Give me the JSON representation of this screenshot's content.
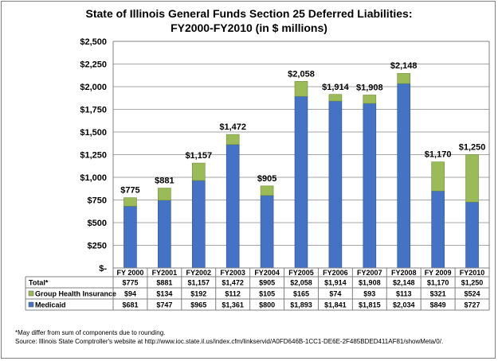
{
  "chart_data": {
    "type": "bar",
    "stacked": true,
    "title_lines": [
      "State of Illinois General Funds Section 25 Deferred Liabilities:",
      "FY2000-FY2010 (in $ millions)"
    ],
    "categories": [
      "FY 2000",
      "FY2001",
      "FY2002",
      "FY2003",
      "FY2004",
      "FY2005",
      "FY2006",
      "FY2007",
      "FY2008",
      "FY 2009",
      "FY2010"
    ],
    "series": [
      {
        "name": "Medicaid",
        "color": "#4472C4",
        "values": [
          681,
          747,
          965,
          1361,
          800,
          1893,
          1841,
          1815,
          2034,
          849,
          727
        ],
        "labels": [
          "$681",
          "$747",
          "$965",
          "$1,361",
          "$800",
          "$1,893",
          "$1,841",
          "$1,815",
          "$2,034",
          "$849",
          "$727"
        ]
      },
      {
        "name": "Group Health Insurance",
        "color": "#9BBB59",
        "values": [
          94,
          134,
          192,
          112,
          105,
          165,
          74,
          93,
          113,
          321,
          524
        ],
        "labels": [
          "$94",
          "$134",
          "$192",
          "$112",
          "$105",
          "$165",
          "$74",
          "$93",
          "$113",
          "$321",
          "$524"
        ]
      }
    ],
    "totals": {
      "name": "Total*",
      "values": [
        775,
        881,
        1157,
        1472,
        905,
        2058,
        1914,
        1908,
        2148,
        1170,
        1250
      ],
      "labels": [
        "$775",
        "$881",
        "$1,157",
        "$1,472",
        "$905",
        "$2,058",
        "$1,914",
        "$1,908",
        "$2,148",
        "$1,170",
        "$1,250"
      ]
    },
    "y_axis": {
      "min": 0,
      "max": 2500,
      "step": 250,
      "tick_labels": [
        "$-",
        "$250",
        "$500",
        "$750",
        "$1,000",
        "$1,250",
        "$1,500",
        "$1,750",
        "$2,000",
        "$2,250",
        "$2,500"
      ]
    },
    "grid": true,
    "legend_placement": "data-table-left",
    "xlabel": "",
    "ylabel": ""
  },
  "footnotes": [
    "*May differ from sum of components due to rounding.",
    "Source: Illinois State Comptroller's website at http://www.ioc.state.il.us/index.cfm/linkservid/A0FD646B-1CC1-DE6E-2F485BDED411AF81/showMeta/0/."
  ]
}
